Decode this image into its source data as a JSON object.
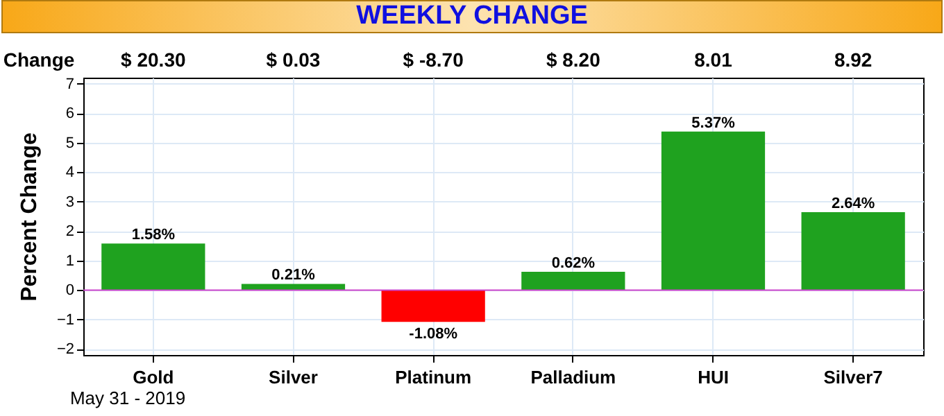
{
  "chart_data": {
    "type": "bar",
    "title": "WEEKLY CHANGE",
    "ylabel": "Percent Change",
    "categories": [
      "Gold",
      "Silver",
      "Platinum",
      "Palladium",
      "HUI",
      "Silver7"
    ],
    "values": [
      1.58,
      0.21,
      -1.08,
      0.62,
      5.37,
      2.64
    ],
    "colors": [
      "#1fa21f",
      "#1fa21f",
      "#ff0000",
      "#1fa21f",
      "#1fa21f",
      "#1fa21f"
    ],
    "value_labels": [
      "1.58%",
      "0.21%",
      "-1.08%",
      "0.62%",
      "5.37%",
      "2.64%"
    ],
    "ylim": [
      -2.2,
      7.2
    ],
    "yticks": [
      -2,
      -1,
      0,
      1,
      2,
      3,
      4,
      5,
      6,
      7
    ],
    "grid": true,
    "ref_lines": [
      {
        "axis": "y",
        "value": 0,
        "color": "#cc44cc"
      }
    ],
    "annotations": [
      "Change",
      "$ 20.30",
      "$ 0.03",
      "$ -8.70",
      "$ 8.20",
      "8.01",
      "8.92",
      "May 31 - 2019"
    ]
  }
}
